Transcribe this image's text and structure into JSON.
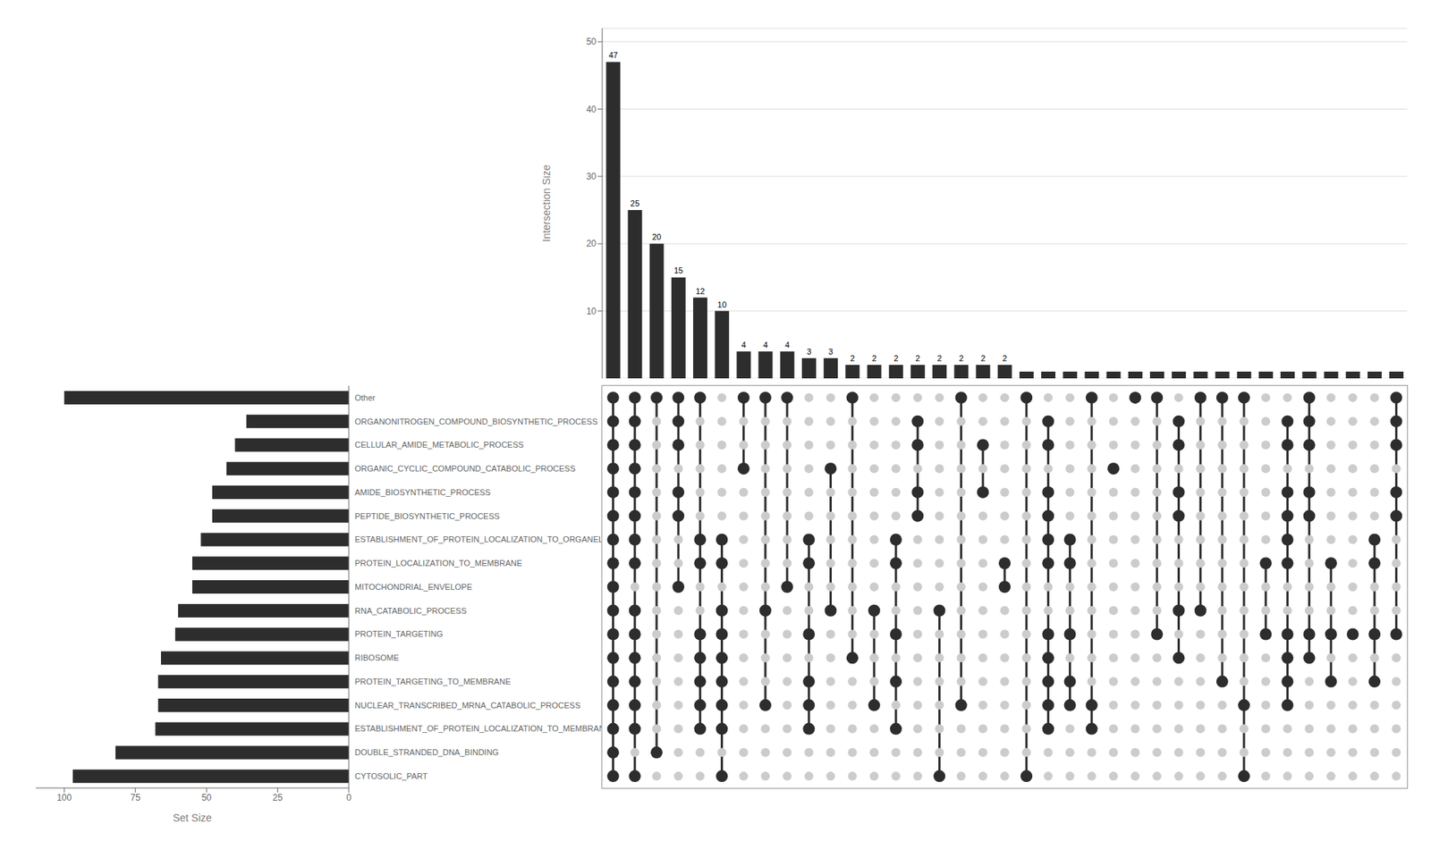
{
  "chart_data": [
    {
      "type": "bar",
      "y_label": "Intersection Size",
      "values": [
        47,
        25,
        20,
        15,
        12,
        10,
        4,
        4,
        4,
        3,
        3,
        2,
        2,
        2,
        2,
        2,
        2,
        2,
        2,
        1,
        1,
        1,
        1,
        1,
        1,
        1,
        1,
        1,
        1,
        1,
        1,
        1,
        1,
        1,
        1,
        1,
        1
      ],
      "value_labels": [
        "47",
        "25",
        "20",
        "15",
        "12",
        "10",
        "4",
        "4",
        "4",
        "3",
        "3",
        "2",
        "2",
        "2",
        "2",
        "2",
        "2",
        "2",
        "2",
        null,
        null,
        null,
        null,
        null,
        null,
        null,
        null,
        null,
        null,
        null,
        null,
        null,
        null,
        null,
        null,
        null,
        null
      ],
      "data_labels": true,
      "color": "#2d2d2d",
      "ylim": [
        0,
        52
      ],
      "yticks": [
        0,
        10,
        20,
        30,
        40,
        50
      ],
      "grid": true,
      "tick_labels": "y"
    },
    {
      "type": "dot_matrix",
      "color": "#2d2d2d",
      "tick_labels": false,
      "memberships": [
        [
          0,
          1,
          2,
          3,
          4,
          5,
          6,
          7,
          8,
          9,
          10,
          11,
          12,
          13,
          14,
          15,
          16
        ],
        [
          0,
          2,
          3,
          4,
          5,
          6,
          7,
          9,
          10,
          11,
          12,
          13,
          14,
          15,
          16
        ],
        [
          1,
          16
        ],
        [
          8,
          11,
          12,
          14,
          15,
          16
        ],
        [
          2,
          3,
          4,
          5,
          6,
          9,
          10,
          16
        ],
        [
          0,
          2,
          3,
          4,
          5,
          6,
          7,
          9,
          10
        ],
        [
          13,
          16
        ],
        [
          3,
          7,
          16
        ],
        [
          8,
          16
        ],
        [
          2,
          3,
          4,
          6,
          9,
          10
        ],
        [
          7,
          13
        ],
        [
          5,
          16
        ],
        [
          3,
          7
        ],
        [
          2,
          4,
          6,
          9,
          10
        ],
        [
          11,
          12,
          14,
          15
        ],
        [
          0,
          7
        ],
        [
          3,
          16
        ],
        [
          12,
          14
        ],
        [
          8,
          9
        ],
        [
          0,
          16
        ],
        [
          2,
          3,
          4,
          5,
          6,
          9,
          10,
          11,
          12,
          14,
          15
        ],
        [
          3,
          4,
          6,
          9,
          10
        ],
        [
          2,
          3,
          16
        ],
        [
          13
        ],
        [
          16
        ],
        [
          6,
          16
        ],
        [
          5,
          7,
          11,
          12,
          14,
          15
        ],
        [
          7,
          16
        ],
        [
          4,
          16
        ],
        [
          0,
          3,
          16
        ],
        [
          6,
          9
        ],
        [
          3,
          4,
          5,
          6,
          9,
          10,
          11,
          12,
          14,
          15
        ],
        [
          5,
          6,
          11,
          12,
          14,
          15,
          16
        ],
        [
          4,
          6,
          9
        ],
        [
          6
        ],
        [
          4,
          6,
          9,
          10
        ],
        [
          6,
          11,
          12,
          14,
          15,
          16
        ]
      ]
    },
    {
      "type": "bar",
      "orientation": "horizontal",
      "x_label": "Set Size",
      "categories": [
        "CYTOSOLIC_PART",
        "DOUBLE_STRANDED_DNA_BINDING",
        "ESTABLISHMENT_OF_PROTEIN_LOCALIZATION_TO_MEMBRANE",
        "NUCLEAR_TRANSCRIBED_MRNA_CATABOLIC_PROCESS",
        "PROTEIN_TARGETING_TO_MEMBRANE",
        "RIBOSOME",
        "PROTEIN_TARGETING",
        "RNA_CATABOLIC_PROCESS",
        "MITOCHONDRIAL_ENVELOPE",
        "PROTEIN_LOCALIZATION_TO_MEMBRANE",
        "ESTABLISHMENT_OF_PROTEIN_LOCALIZATION_TO_ORGANELLE",
        "PEPTIDE_BIOSYNTHETIC_PROCESS",
        "AMIDE_BIOSYNTHETIC_PROCESS",
        "ORGANIC_CYCLIC_COMPOUND_CATABOLIC_PROCESS",
        "CELLULAR_AMIDE_METABOLIC_PROCESS",
        "ORGANONITROGEN_COMPOUND_BIOSYNTHETIC_PROCESS",
        "Other"
      ],
      "values": [
        97,
        82,
        68,
        67,
        67,
        66,
        61,
        60,
        55,
        55,
        52,
        48,
        48,
        43,
        40,
        36,
        100
      ],
      "color": "#2d2d2d",
      "xlim": [
        110,
        0
      ],
      "xticks": [
        100,
        75,
        50,
        25,
        0
      ]
    }
  ]
}
